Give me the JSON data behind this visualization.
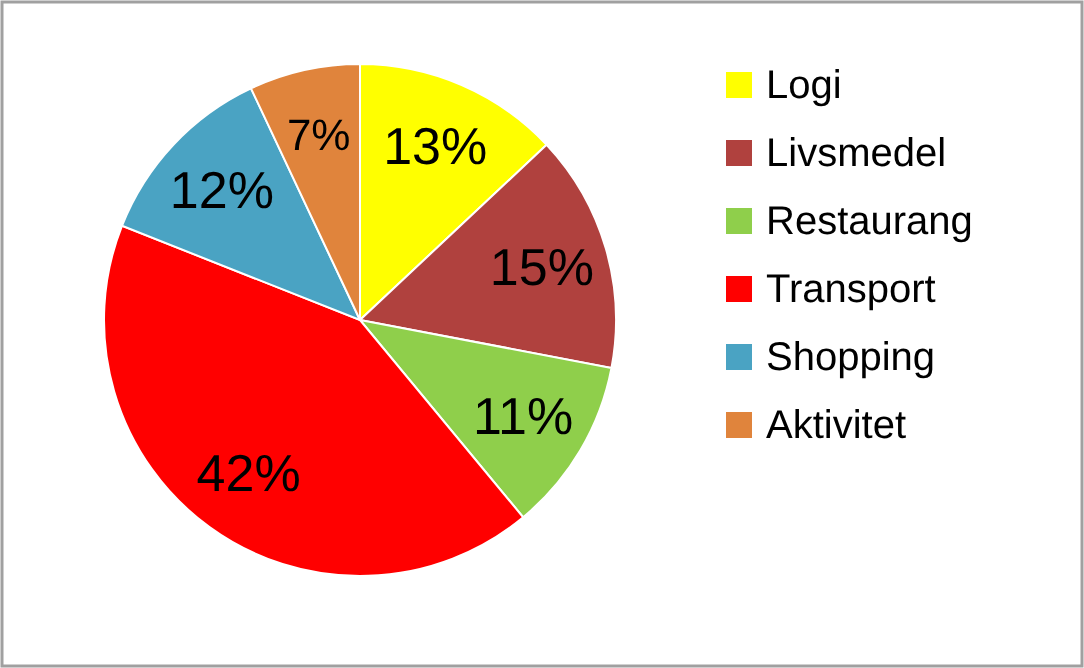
{
  "chart_data": {
    "type": "pie",
    "categories": [
      "Logi",
      "Livsmedel",
      "Restaurang",
      "Transport",
      "Shopping",
      "Aktivitet"
    ],
    "values": [
      13,
      15,
      11,
      42,
      12,
      7
    ],
    "colors": [
      "#ffff00",
      "#b0413e",
      "#8fcf4b",
      "#ff0000",
      "#4aa3c3",
      "#e0843c"
    ],
    "value_labels": [
      "13%",
      "15%",
      "11%",
      "42%",
      "12%",
      "7%"
    ],
    "legend": "right"
  }
}
